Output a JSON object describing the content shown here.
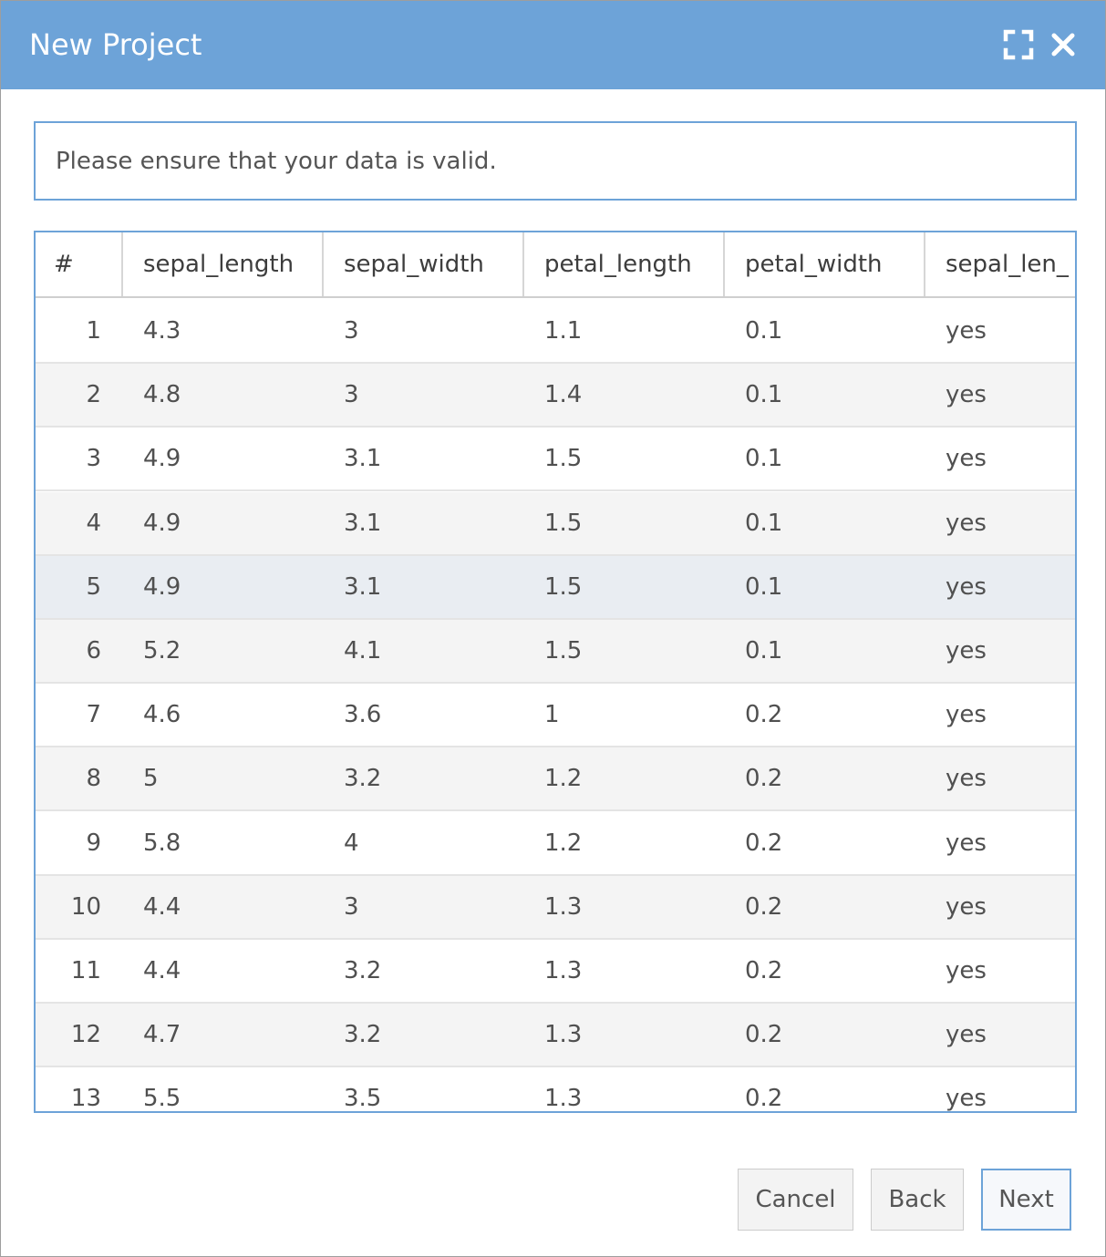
{
  "dialog": {
    "title": "New Project",
    "maximize_icon": "maximize-icon",
    "close_icon": "close-icon"
  },
  "message": "Please ensure that your data is valid.",
  "table": {
    "columns": [
      "#",
      "sepal_length",
      "sepal_width",
      "petal_length",
      "petal_width",
      "sepal_len_"
    ],
    "rows": [
      [
        "1",
        "4.3",
        "3",
        "1.1",
        "0.1",
        "yes"
      ],
      [
        "2",
        "4.8",
        "3",
        "1.4",
        "0.1",
        "yes"
      ],
      [
        "3",
        "4.9",
        "3.1",
        "1.5",
        "0.1",
        "yes"
      ],
      [
        "4",
        "4.9",
        "3.1",
        "1.5",
        "0.1",
        "yes"
      ],
      [
        "5",
        "4.9",
        "3.1",
        "1.5",
        "0.1",
        "yes"
      ],
      [
        "6",
        "5.2",
        "4.1",
        "1.5",
        "0.1",
        "yes"
      ],
      [
        "7",
        "4.6",
        "3.6",
        "1",
        "0.2",
        "yes"
      ],
      [
        "8",
        "5",
        "3.2",
        "1.2",
        "0.2",
        "yes"
      ],
      [
        "9",
        "5.8",
        "4",
        "1.2",
        "0.2",
        "yes"
      ],
      [
        "10",
        "4.4",
        "3",
        "1.3",
        "0.2",
        "yes"
      ],
      [
        "11",
        "4.4",
        "3.2",
        "1.3",
        "0.2",
        "yes"
      ],
      [
        "12",
        "4.7",
        "3.2",
        "1.3",
        "0.2",
        "yes"
      ],
      [
        "13",
        "5.5",
        "3.5",
        "1.3",
        "0.2",
        "yes"
      ]
    ]
  },
  "buttons": {
    "cancel": "Cancel",
    "back": "Back",
    "next": "Next"
  },
  "colors": {
    "accent": "#6da3d8",
    "row_alt": "#f4f4f4",
    "row_hover": "#e9edf2"
  }
}
